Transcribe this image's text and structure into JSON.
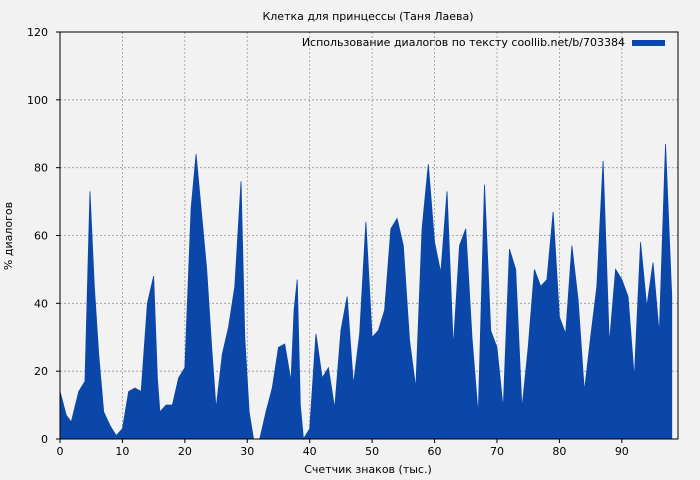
{
  "chart_data": {
    "type": "area",
    "title": "Клетка для принцессы (Таня Лаева)",
    "xlabel": "Счетчик знаков (тыс.)",
    "ylabel": "% диалогов",
    "xlim": [
      0,
      99
    ],
    "ylim": [
      0,
      120
    ],
    "x_ticks": [
      0,
      10,
      20,
      30,
      40,
      50,
      60,
      70,
      80,
      90
    ],
    "y_ticks": [
      0,
      20,
      40,
      60,
      80,
      100,
      120
    ],
    "grid": true,
    "legend_position": "top-right",
    "colors": {
      "series": "#0a47a9",
      "background": "#f2f2f2",
      "plot_bg": "#f2f2f2"
    },
    "series": [
      {
        "name": "Использование диалогов по тексту coollib.net/b/703384",
        "points": [
          [
            0,
            14
          ],
          [
            1,
            7
          ],
          [
            1.8,
            5
          ],
          [
            3,
            14
          ],
          [
            4,
            17
          ],
          [
            4.8,
            73
          ],
          [
            5.5,
            45
          ],
          [
            6.2,
            25
          ],
          [
            7,
            8
          ],
          [
            8,
            4
          ],
          [
            9,
            1
          ],
          [
            10,
            3
          ],
          [
            11,
            14
          ],
          [
            12,
            15
          ],
          [
            13,
            14
          ],
          [
            14,
            40
          ],
          [
            15,
            48
          ],
          [
            15.6,
            18
          ],
          [
            16,
            8
          ],
          [
            17,
            10
          ],
          [
            18,
            10
          ],
          [
            19,
            18
          ],
          [
            20,
            21
          ],
          [
            21,
            68
          ],
          [
            21.8,
            84
          ],
          [
            22.5,
            70
          ],
          [
            23.5,
            50
          ],
          [
            24.3,
            27
          ],
          [
            25,
            9
          ],
          [
            26,
            25
          ],
          [
            27,
            33
          ],
          [
            28,
            45
          ],
          [
            29,
            76
          ],
          [
            29.6,
            30
          ],
          [
            30.3,
            8
          ],
          [
            31,
            0
          ],
          [
            32,
            0
          ],
          [
            33,
            8
          ],
          [
            34,
            15
          ],
          [
            35,
            27
          ],
          [
            36,
            28
          ],
          [
            37,
            17
          ],
          [
            37.5,
            38
          ],
          [
            38,
            47
          ],
          [
            38.5,
            10
          ],
          [
            39,
            0
          ],
          [
            40,
            3
          ],
          [
            41,
            31
          ],
          [
            42,
            18
          ],
          [
            43,
            21
          ],
          [
            44,
            9
          ],
          [
            45,
            32
          ],
          [
            46,
            42
          ],
          [
            47,
            16
          ],
          [
            48,
            31
          ],
          [
            49,
            64
          ],
          [
            50,
            30
          ],
          [
            51,
            32
          ],
          [
            52,
            38
          ],
          [
            53,
            62
          ],
          [
            54,
            65
          ],
          [
            55,
            57
          ],
          [
            56,
            29
          ],
          [
            57,
            15
          ],
          [
            58,
            62
          ],
          [
            59,
            81
          ],
          [
            60,
            58
          ],
          [
            61,
            49
          ],
          [
            62,
            73
          ],
          [
            63,
            27
          ],
          [
            64,
            57
          ],
          [
            65,
            62
          ],
          [
            66,
            30
          ],
          [
            67,
            7
          ],
          [
            68,
            75
          ],
          [
            69,
            32
          ],
          [
            70,
            27
          ],
          [
            71,
            9
          ],
          [
            72,
            56
          ],
          [
            73,
            50
          ],
          [
            74,
            9
          ],
          [
            75,
            27
          ],
          [
            76,
            50
          ],
          [
            77,
            45
          ],
          [
            78,
            47
          ],
          [
            79,
            67
          ],
          [
            80,
            36
          ],
          [
            81,
            31
          ],
          [
            82,
            57
          ],
          [
            83,
            41
          ],
          [
            84,
            14
          ],
          [
            85,
            30
          ],
          [
            86,
            45
          ],
          [
            87,
            82
          ],
          [
            88,
            28
          ],
          [
            89,
            50
          ],
          [
            90,
            47
          ],
          [
            91,
            42
          ],
          [
            92,
            18
          ],
          [
            93,
            58
          ],
          [
            94,
            39
          ],
          [
            95,
            52
          ],
          [
            96,
            31
          ],
          [
            97,
            87
          ],
          [
            98,
            42
          ]
        ]
      }
    ]
  }
}
